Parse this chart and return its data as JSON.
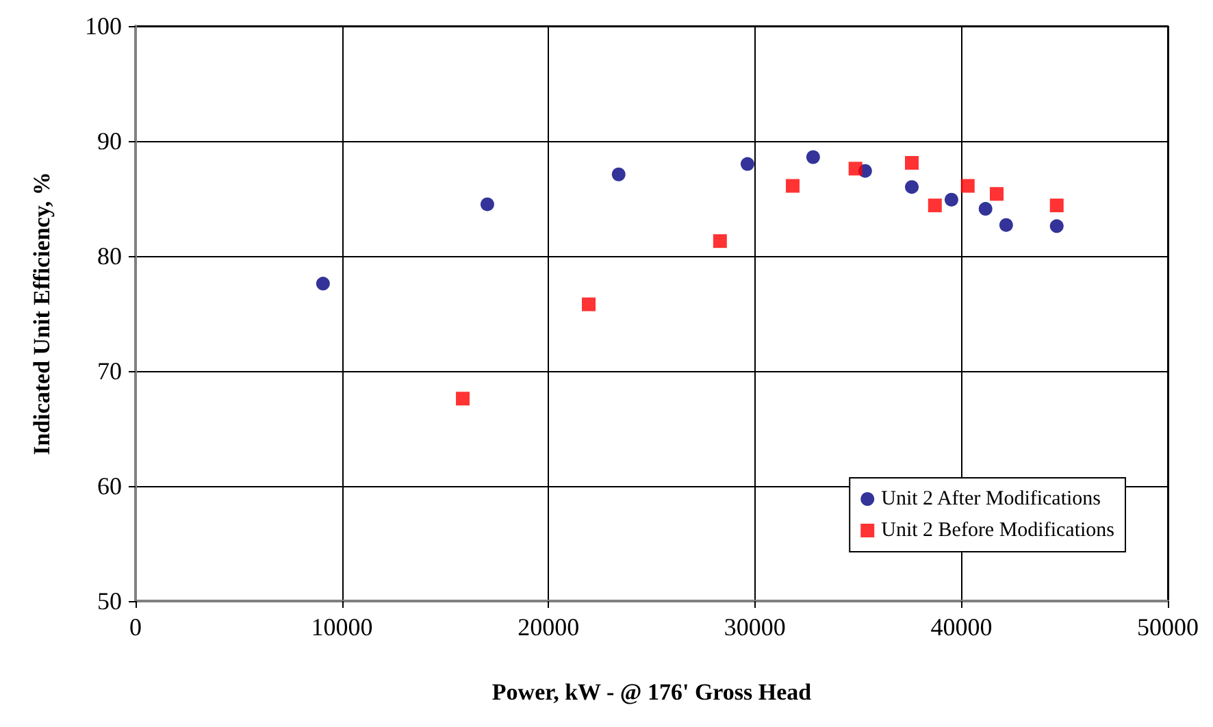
{
  "chart_data": {
    "type": "scatter",
    "xlabel": "Power, kW - @ 176' Gross Head",
    "ylabel": "Indicated Unit Efficiency, %",
    "xlim": [
      0,
      50000
    ],
    "xticks": [
      0,
      10000,
      20000,
      30000,
      40000,
      50000
    ],
    "ylim": [
      50,
      100
    ],
    "yticks": [
      50,
      60,
      70,
      80,
      90,
      100
    ],
    "grid": true,
    "legend": "bottom right",
    "series": [
      {
        "name": "Unit 2 After Modifications",
        "color": "#000080",
        "marker": "circle",
        "x": [
          9080,
          17040,
          23400,
          29640,
          32820,
          35340,
          37600,
          39520,
          41170,
          42170,
          44620
        ],
        "values": [
          77.6,
          84.5,
          87.1,
          88.0,
          88.6,
          87.4,
          86.0,
          84.9,
          84.1,
          82.7,
          82.6
        ]
      },
      {
        "name": "Unit 2 Before Modifications",
        "color": "#ff0000",
        "marker": "square",
        "x": [
          15850,
          21950,
          28310,
          31830,
          34870,
          37600,
          38720,
          40310,
          41710,
          44620
        ],
        "values": [
          67.6,
          75.8,
          81.3,
          86.1,
          87.6,
          88.1,
          84.4,
          86.1,
          85.4,
          84.4
        ]
      }
    ]
  }
}
